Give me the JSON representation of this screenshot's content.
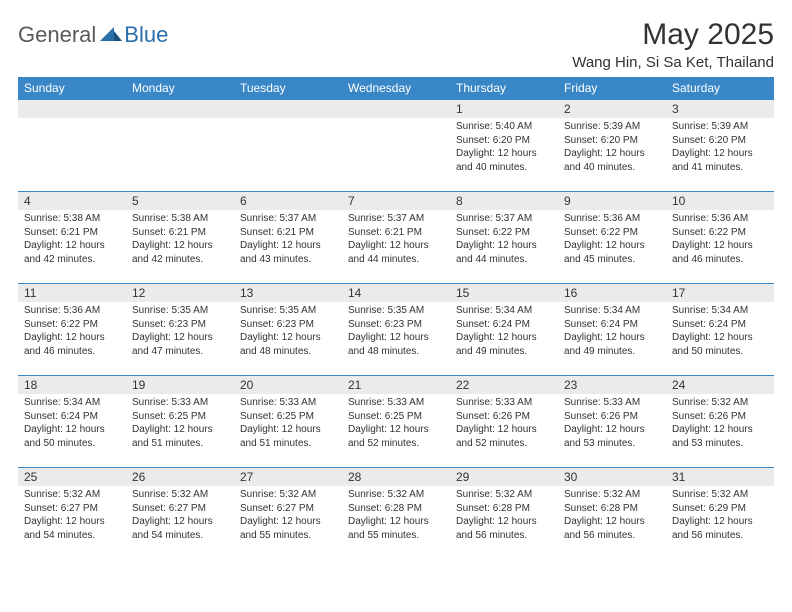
{
  "logo": {
    "general": "General",
    "blue": "Blue"
  },
  "title": "May 2025",
  "location": "Wang Hin, Si Sa Ket, Thailand",
  "colors": {
    "header_bg": "#3a87c7",
    "header_fg": "#ffffff",
    "daynum_bg": "#ebebeb",
    "border": "#3a87c7",
    "text": "#333333",
    "logo_gray": "#5a5a5a",
    "logo_blue": "#2a6faa"
  },
  "day_names": [
    "Sunday",
    "Monday",
    "Tuesday",
    "Wednesday",
    "Thursday",
    "Friday",
    "Saturday"
  ],
  "weeks": [
    [
      {
        "day": "",
        "sunrise": "",
        "sunset": "",
        "daylight": ""
      },
      {
        "day": "",
        "sunrise": "",
        "sunset": "",
        "daylight": ""
      },
      {
        "day": "",
        "sunrise": "",
        "sunset": "",
        "daylight": ""
      },
      {
        "day": "",
        "sunrise": "",
        "sunset": "",
        "daylight": ""
      },
      {
        "day": "1",
        "sunrise": "Sunrise: 5:40 AM",
        "sunset": "Sunset: 6:20 PM",
        "daylight": "Daylight: 12 hours and 40 minutes."
      },
      {
        "day": "2",
        "sunrise": "Sunrise: 5:39 AM",
        "sunset": "Sunset: 6:20 PM",
        "daylight": "Daylight: 12 hours and 40 minutes."
      },
      {
        "day": "3",
        "sunrise": "Sunrise: 5:39 AM",
        "sunset": "Sunset: 6:20 PM",
        "daylight": "Daylight: 12 hours and 41 minutes."
      }
    ],
    [
      {
        "day": "4",
        "sunrise": "Sunrise: 5:38 AM",
        "sunset": "Sunset: 6:21 PM",
        "daylight": "Daylight: 12 hours and 42 minutes."
      },
      {
        "day": "5",
        "sunrise": "Sunrise: 5:38 AM",
        "sunset": "Sunset: 6:21 PM",
        "daylight": "Daylight: 12 hours and 42 minutes."
      },
      {
        "day": "6",
        "sunrise": "Sunrise: 5:37 AM",
        "sunset": "Sunset: 6:21 PM",
        "daylight": "Daylight: 12 hours and 43 minutes."
      },
      {
        "day": "7",
        "sunrise": "Sunrise: 5:37 AM",
        "sunset": "Sunset: 6:21 PM",
        "daylight": "Daylight: 12 hours and 44 minutes."
      },
      {
        "day": "8",
        "sunrise": "Sunrise: 5:37 AM",
        "sunset": "Sunset: 6:22 PM",
        "daylight": "Daylight: 12 hours and 44 minutes."
      },
      {
        "day": "9",
        "sunrise": "Sunrise: 5:36 AM",
        "sunset": "Sunset: 6:22 PM",
        "daylight": "Daylight: 12 hours and 45 minutes."
      },
      {
        "day": "10",
        "sunrise": "Sunrise: 5:36 AM",
        "sunset": "Sunset: 6:22 PM",
        "daylight": "Daylight: 12 hours and 46 minutes."
      }
    ],
    [
      {
        "day": "11",
        "sunrise": "Sunrise: 5:36 AM",
        "sunset": "Sunset: 6:22 PM",
        "daylight": "Daylight: 12 hours and 46 minutes."
      },
      {
        "day": "12",
        "sunrise": "Sunrise: 5:35 AM",
        "sunset": "Sunset: 6:23 PM",
        "daylight": "Daylight: 12 hours and 47 minutes."
      },
      {
        "day": "13",
        "sunrise": "Sunrise: 5:35 AM",
        "sunset": "Sunset: 6:23 PM",
        "daylight": "Daylight: 12 hours and 48 minutes."
      },
      {
        "day": "14",
        "sunrise": "Sunrise: 5:35 AM",
        "sunset": "Sunset: 6:23 PM",
        "daylight": "Daylight: 12 hours and 48 minutes."
      },
      {
        "day": "15",
        "sunrise": "Sunrise: 5:34 AM",
        "sunset": "Sunset: 6:24 PM",
        "daylight": "Daylight: 12 hours and 49 minutes."
      },
      {
        "day": "16",
        "sunrise": "Sunrise: 5:34 AM",
        "sunset": "Sunset: 6:24 PM",
        "daylight": "Daylight: 12 hours and 49 minutes."
      },
      {
        "day": "17",
        "sunrise": "Sunrise: 5:34 AM",
        "sunset": "Sunset: 6:24 PM",
        "daylight": "Daylight: 12 hours and 50 minutes."
      }
    ],
    [
      {
        "day": "18",
        "sunrise": "Sunrise: 5:34 AM",
        "sunset": "Sunset: 6:24 PM",
        "daylight": "Daylight: 12 hours and 50 minutes."
      },
      {
        "day": "19",
        "sunrise": "Sunrise: 5:33 AM",
        "sunset": "Sunset: 6:25 PM",
        "daylight": "Daylight: 12 hours and 51 minutes."
      },
      {
        "day": "20",
        "sunrise": "Sunrise: 5:33 AM",
        "sunset": "Sunset: 6:25 PM",
        "daylight": "Daylight: 12 hours and 51 minutes."
      },
      {
        "day": "21",
        "sunrise": "Sunrise: 5:33 AM",
        "sunset": "Sunset: 6:25 PM",
        "daylight": "Daylight: 12 hours and 52 minutes."
      },
      {
        "day": "22",
        "sunrise": "Sunrise: 5:33 AM",
        "sunset": "Sunset: 6:26 PM",
        "daylight": "Daylight: 12 hours and 52 minutes."
      },
      {
        "day": "23",
        "sunrise": "Sunrise: 5:33 AM",
        "sunset": "Sunset: 6:26 PM",
        "daylight": "Daylight: 12 hours and 53 minutes."
      },
      {
        "day": "24",
        "sunrise": "Sunrise: 5:32 AM",
        "sunset": "Sunset: 6:26 PM",
        "daylight": "Daylight: 12 hours and 53 minutes."
      }
    ],
    [
      {
        "day": "25",
        "sunrise": "Sunrise: 5:32 AM",
        "sunset": "Sunset: 6:27 PM",
        "daylight": "Daylight: 12 hours and 54 minutes."
      },
      {
        "day": "26",
        "sunrise": "Sunrise: 5:32 AM",
        "sunset": "Sunset: 6:27 PM",
        "daylight": "Daylight: 12 hours and 54 minutes."
      },
      {
        "day": "27",
        "sunrise": "Sunrise: 5:32 AM",
        "sunset": "Sunset: 6:27 PM",
        "daylight": "Daylight: 12 hours and 55 minutes."
      },
      {
        "day": "28",
        "sunrise": "Sunrise: 5:32 AM",
        "sunset": "Sunset: 6:28 PM",
        "daylight": "Daylight: 12 hours and 55 minutes."
      },
      {
        "day": "29",
        "sunrise": "Sunrise: 5:32 AM",
        "sunset": "Sunset: 6:28 PM",
        "daylight": "Daylight: 12 hours and 56 minutes."
      },
      {
        "day": "30",
        "sunrise": "Sunrise: 5:32 AM",
        "sunset": "Sunset: 6:28 PM",
        "daylight": "Daylight: 12 hours and 56 minutes."
      },
      {
        "day": "31",
        "sunrise": "Sunrise: 5:32 AM",
        "sunset": "Sunset: 6:29 PM",
        "daylight": "Daylight: 12 hours and 56 minutes."
      }
    ]
  ]
}
